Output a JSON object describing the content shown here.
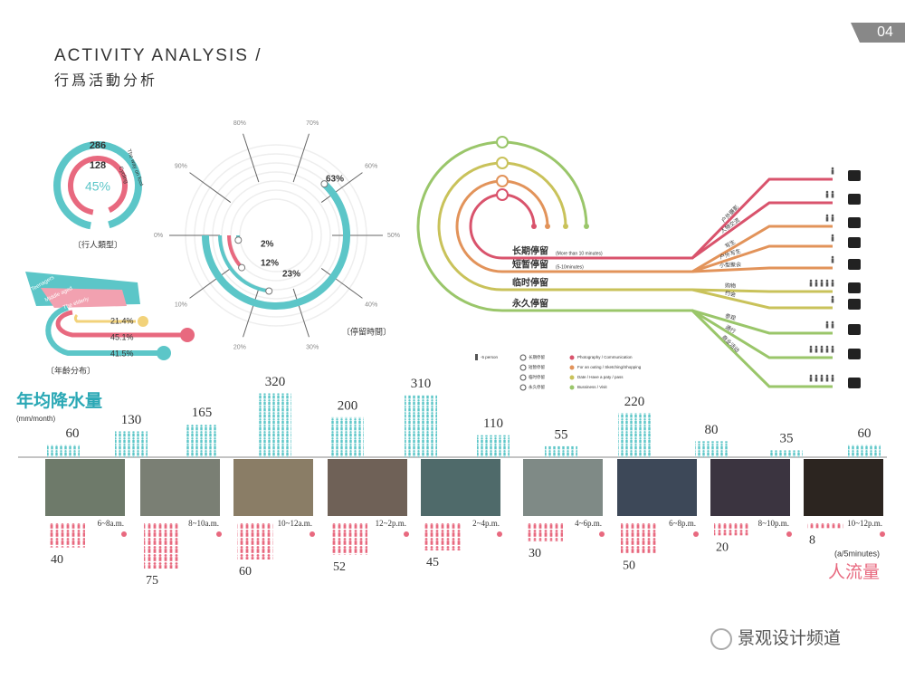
{
  "header": {
    "title": "ACTIVITY ANALYSIS /",
    "subtitle": "行爲活動分析",
    "page": "04"
  },
  "pedestrian_type": {
    "title": "〔行人類型〕",
    "walking": {
      "value": "286",
      "label": "The way on foot"
    },
    "cycling": {
      "value": "128",
      "label": "Cycling"
    },
    "share": "45%"
  },
  "age_distribution": {
    "title": "〔年齡分布〕",
    "groups": [
      {
        "label": "Teenagers",
        "share": "21.4%"
      },
      {
        "label": "Middle aged",
        "share": "45.1%"
      },
      {
        "label": "The elderly",
        "share": "41.5%"
      }
    ]
  },
  "stay_flow": {
    "stays": [
      {
        "name": "长期停留",
        "note": "(More than 10 minutes)",
        "color": "#d9536c",
        "activities": [
          {
            "label": "户外摄影",
            "persons": 1
          },
          {
            "label": "人物交流",
            "persons": 2
          }
        ]
      },
      {
        "name": "短暂停留",
        "note": "(5-10minutes)",
        "color": "#e2935a",
        "activities": [
          {
            "label": "写生",
            "persons": 2
          },
          {
            "label": "户外写生",
            "persons": 1
          },
          {
            "label": "小型聚会",
            "persons": 1
          }
        ]
      },
      {
        "name": "临时停留",
        "color": "#c9c25a",
        "activities": [
          {
            "label": "购物",
            "persons": 5
          },
          {
            "label": "约会",
            "persons": 1
          }
        ]
      },
      {
        "name": "永久停留",
        "color": "#9ac66a",
        "activities": [
          {
            "label": "参观",
            "persons": 2
          },
          {
            "label": "通行",
            "persons": 5
          },
          {
            "label": "商业活动",
            "persons": 5
          }
        ]
      }
    ],
    "legend": {
      "unit": "-5 person",
      "stays": [
        "长期停留",
        "短暂停留",
        "临时停留",
        "永久停留"
      ],
      "activities": [
        "Photography / Communication",
        "For an outing / Sketching/Shopping",
        "Date / Have a paty / pass",
        "Bussiness / Visit"
      ]
    }
  },
  "chart_data": [
    {
      "type": "radial-bar",
      "title": "〔停留時間〕",
      "values": [
        63,
        23,
        12,
        2
      ],
      "value_labels": [
        "63%",
        "23%",
        "12%",
        "2%"
      ],
      "colors": [
        "#5cc6c8",
        "#5cc6c8",
        "#e8697f",
        "#5cc6c8"
      ],
      "xlim": [
        0,
        100
      ],
      "xticks": [
        {
          "value": 0,
          "label": "0%"
        },
        {
          "value": 10,
          "label": "10%"
        },
        {
          "value": 20,
          "label": "20%"
        },
        {
          "value": 30,
          "label": "30%"
        },
        {
          "value": 40,
          "label": "40%"
        },
        {
          "value": 50,
          "label": "50%"
        },
        {
          "value": 60,
          "label": "60%"
        },
        {
          "value": 70,
          "label": "70%"
        },
        {
          "value": 80,
          "label": "80%"
        },
        {
          "value": 90,
          "label": "90%"
        }
      ]
    },
    {
      "type": "pictogram",
      "direction": "up",
      "title": "年均降水量",
      "subtitle": "(mm/month)",
      "values": [
        60,
        130,
        165,
        320,
        200,
        310,
        110,
        55,
        220,
        80,
        35,
        60
      ],
      "color": "#5cc6c8",
      "ylim": [
        0,
        340
      ]
    },
    {
      "type": "pictogram",
      "direction": "down",
      "title": "人流量",
      "subtitle": "(a/5minutes)",
      "categories": [
        "6~8a.m.",
        "8~10a.m.",
        "10~12a.m.",
        "12~2p.m.",
        "2~4p.m.",
        "4~6p.m.",
        "6~8p.m.",
        "8~10p.m.",
        "10~12p.m."
      ],
      "values": [
        40,
        75,
        60,
        52,
        45,
        30,
        50,
        20,
        8
      ],
      "color": "#e8697f",
      "ylim": [
        0,
        90
      ]
    }
  ],
  "watermark": "景观设计频道"
}
